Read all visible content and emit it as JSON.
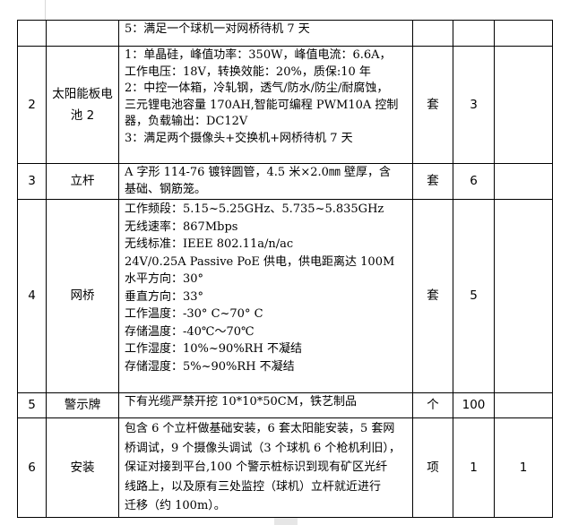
{
  "rows": [
    {
      "no": "",
      "name": "",
      "desc": [
        "5：满足一个球机一对网桥待机 7 天"
      ],
      "unit": "",
      "qty": "",
      "extra": ""
    },
    {
      "no": "2",
      "name": "太阳能板电池 2",
      "desc": [
        "1：单晶硅，峰值功率：350W，峰值电流：6.6A，",
        "工作电压：18V，转换效能：20%，质保:10 年",
        "2：中控一体箱，冷轧钢，透气/防水/防尘/耐腐蚀，",
        "三元锂电池容量 170AH,智能可编程 PWM10A 控制",
        "器，负载输出：DC12V",
        "3：满足两个摄像头+交换机+网桥待机 7 天"
      ],
      "unit": "套",
      "qty": "3",
      "extra": ""
    },
    {
      "no": "3",
      "name": "立杆",
      "desc": [
        "A 字形 114-76 镀锌圆管，4.5 米×2.0㎜ 壁厚，含",
        "基础、钢筋笼。"
      ],
      "unit": "套",
      "qty": "6",
      "extra": ""
    },
    {
      "no": "4",
      "name": "网桥",
      "desc": [
        "工作频段：5.15~5.25GHz、5.735~5.835GHz",
        "无线速率：867Mbps",
        "无线标准：IEEE 802.11a/n/ac",
        "24V/0.25A Passive PoE 供电，供电距离达 100M",
        "水平方向：30°",
        "垂直方向：33°",
        "工作温度：-30° C~70° C",
        "存储温度：-40℃～70℃",
        "工作湿度：10%~90%RH 不凝结",
        "存储湿度：5%~90%RH 不凝结"
      ],
      "unit": "套",
      "qty": "5",
      "extra": ""
    },
    {
      "no": "5",
      "name": "警示牌",
      "desc": [
        "下有光缆严禁开挖 10*10*50CM，铁艺制品"
      ],
      "unit": "个",
      "qty": "100",
      "extra": ""
    },
    {
      "no": "6",
      "name": "安装",
      "desc": [
        "包含 6 个立杆做基础安装，6 套太阳能安装，5 套网",
        "桥调试，9 个摄像头调试（3 个球机 6 个枪机利旧），",
        "保证对接到平台,100 个警示桩标识到现有矿区光纤",
        "线路上，以及原有三处监控（球机）立杆就近进行",
        "迁移（约 100m）。"
      ],
      "unit": "项",
      "qty": "1",
      "extra": "1"
    }
  ]
}
